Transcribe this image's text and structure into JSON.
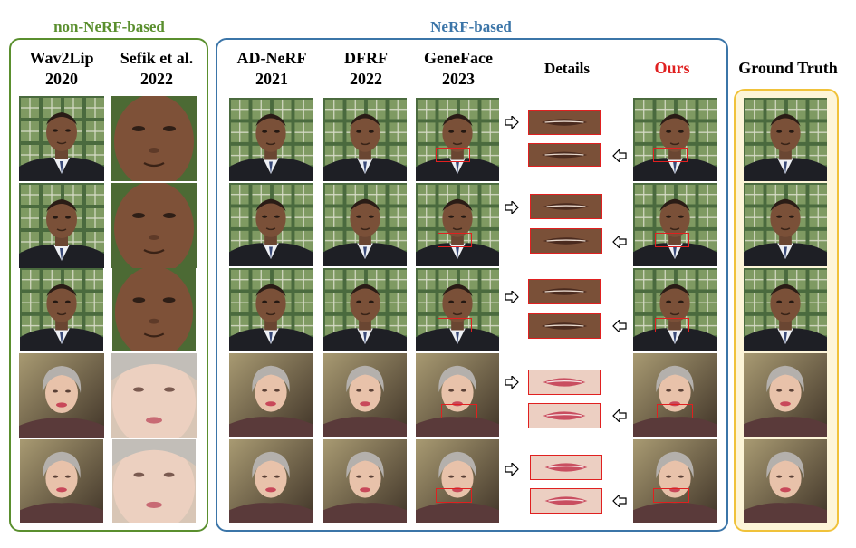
{
  "groups": {
    "non_nerf": "non-NeRF-based",
    "nerf": "NeRF-based",
    "colors": {
      "non_nerf": "#5a8f2e",
      "nerf": "#3b75a8",
      "gt_border": "#f0c23a",
      "gt_fill": "#fdf5d8",
      "highlight": "#e02020"
    }
  },
  "columns": {
    "wav2lip": {
      "name": "Wav2Lip",
      "year": "2020"
    },
    "sefik": {
      "name": "Sefik et al.",
      "year": "2022"
    },
    "adnerf": {
      "name": "AD-NeRF",
      "year": "2021"
    },
    "dfrf": {
      "name": "DFRF",
      "year": "2022"
    },
    "geneface": {
      "name": "GeneFace",
      "year": "2023"
    },
    "details": "Details",
    "ours": "Ours",
    "gt": "Ground  Truth"
  },
  "rows": [
    {
      "subject": "obama",
      "image": "obama-face-frame"
    },
    {
      "subject": "obama",
      "image": "obama-face-frame"
    },
    {
      "subject": "obama",
      "image": "obama-face-frame"
    },
    {
      "subject": "may",
      "image": "may-face-frame"
    },
    {
      "subject": "may",
      "image": "may-face-frame"
    }
  ]
}
